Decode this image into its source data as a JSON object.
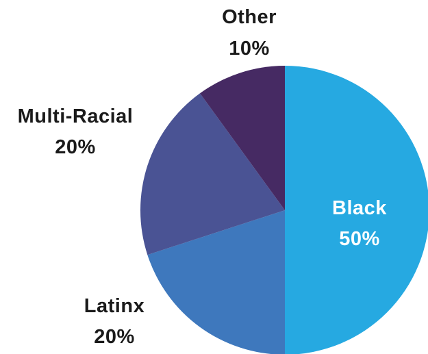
{
  "chart_data": {
    "type": "pie",
    "title": "",
    "start_angle_deg": 0,
    "direction": "clockwise",
    "slices": [
      {
        "label": "Black",
        "value": 50,
        "value_label": "50%",
        "color": "#26A9E1",
        "label_color": "#ffffff"
      },
      {
        "label": "Latinx",
        "value": 20,
        "value_label": "20%",
        "color": "#3E78BD",
        "label_color": "#1a1a1a"
      },
      {
        "label": "Multi-Racial",
        "value": 20,
        "value_label": "20%",
        "color": "#4A5394",
        "label_color": "#1a1a1a"
      },
      {
        "label": "Other",
        "value": 10,
        "value_label": "10%",
        "color": "#462A63",
        "label_color": "#1a1a1a"
      }
    ]
  }
}
